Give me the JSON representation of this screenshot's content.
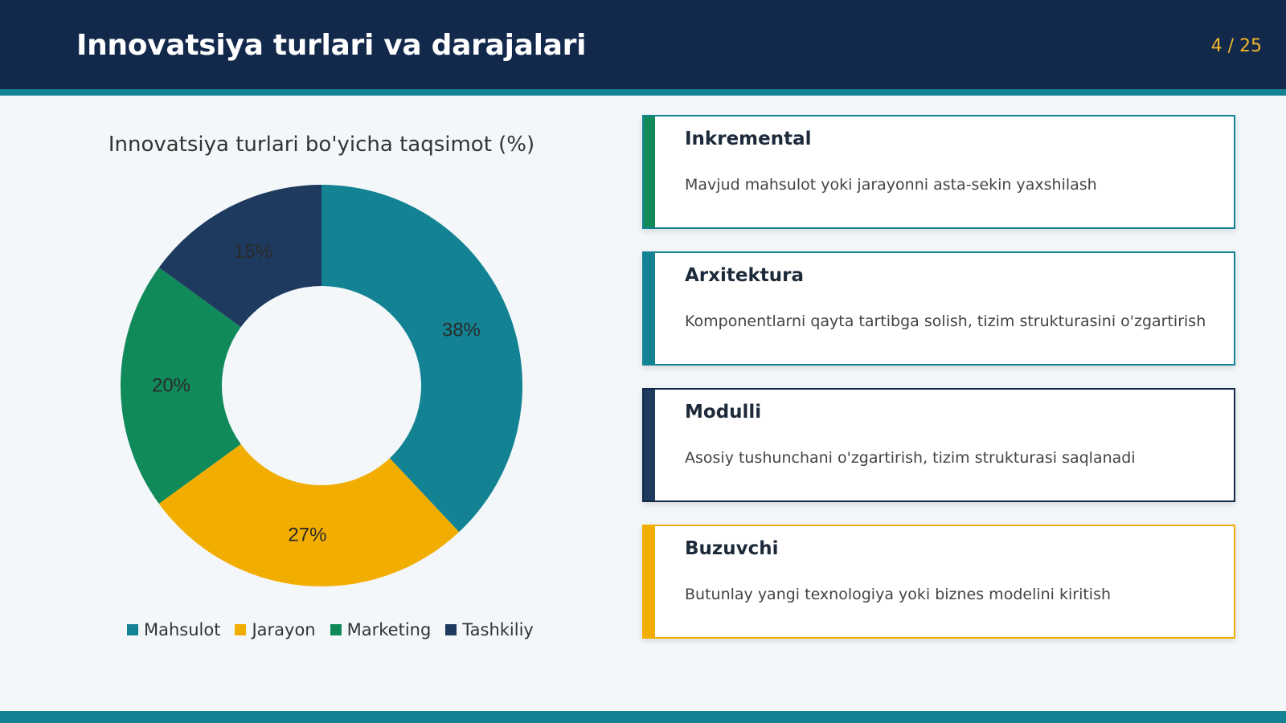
{
  "slide": {
    "title": "Innovatsiya turlari va darajalari",
    "page": "4 / 25"
  },
  "colors": {
    "header": "#13294b",
    "stripe": "#138293",
    "page_number": "#f1b52b"
  },
  "chart_data": {
    "type": "pie",
    "title": "Innovatsiya turlari bo'yicha taqsimot (%)",
    "categories": [
      "Mahsulot",
      "Jarayon",
      "Marketing",
      "Tashkiliy"
    ],
    "values": [
      38,
      27,
      20,
      15
    ],
    "labels": [
      "38%",
      "27%",
      "20%",
      "15%"
    ],
    "colors": [
      "#138293",
      "#f2ae00",
      "#118a5a",
      "#1e3a5f"
    ],
    "donut": true,
    "legend_position": "bottom"
  },
  "cards": [
    {
      "title": "Inkremental",
      "description": "Mavjud mahsulot yoki jarayonni asta-sekin yaxshilash",
      "accent": "#138a5a",
      "border": "#138293"
    },
    {
      "title": "Arxitektura",
      "description": "Komponentlarni qayta tartibga solish, tizim strukturasini o'zgartirish",
      "accent": "#138293",
      "border": "#138293"
    },
    {
      "title": "Modulli",
      "description": "Asosiy tushunchani o'zgartirish, tizim strukturasi saqlanadi",
      "accent": "#1e3a5f",
      "border": "#13294b"
    },
    {
      "title": "Buzuvchi",
      "description": "Butunlay yangi texnologiya yoki biznes modelini kiritish",
      "accent": "#f2ae00",
      "border": "#f2ae00"
    }
  ]
}
